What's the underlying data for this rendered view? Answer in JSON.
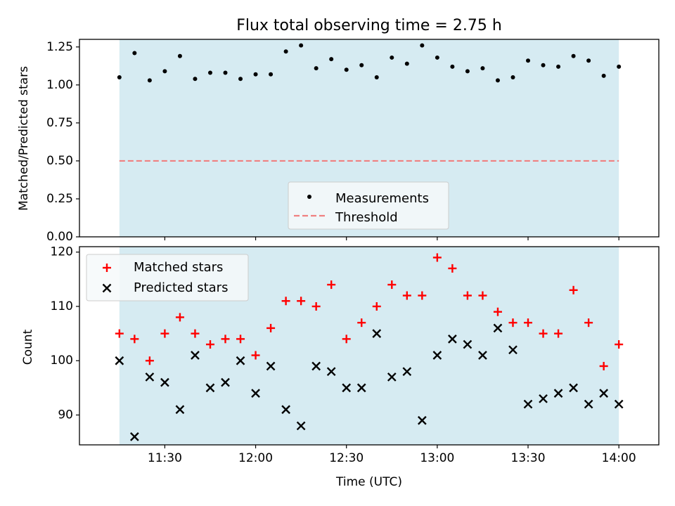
{
  "title": "Flux total observing time = 2.75 h",
  "colors": {
    "shade": "#add8e6",
    "matched": "#ff0000",
    "predicted": "#000000",
    "measurement": "#000000",
    "threshold": "#f08080"
  },
  "chart_data": [
    {
      "type": "scatter",
      "ylabel": "Matched/Predicted stars",
      "ylim": [
        0,
        1.3
      ],
      "yticks": [
        "0.00",
        "0.25",
        "0.50",
        "0.75",
        "1.00",
        "1.25"
      ],
      "observing_window": [
        "11:15",
        "14:00"
      ],
      "threshold": 0.5,
      "legend": {
        "placement": "lower-center",
        "entries": [
          "Measurements",
          "Threshold"
        ]
      },
      "series": [
        {
          "name": "Measurements",
          "x": [
            "11:15",
            "11:20",
            "11:25",
            "11:30",
            "11:35",
            "11:40",
            "11:45",
            "11:50",
            "11:55",
            "12:00",
            "12:05",
            "12:10",
            "12:15",
            "12:20",
            "12:25",
            "12:30",
            "12:35",
            "12:40",
            "12:45",
            "12:50",
            "12:55",
            "13:00",
            "13:05",
            "13:10",
            "13:15",
            "13:20",
            "13:25",
            "13:30",
            "13:35",
            "13:40",
            "13:45",
            "13:50",
            "13:55",
            "14:00"
          ],
          "values": [
            1.05,
            1.21,
            1.03,
            1.09,
            1.19,
            1.04,
            1.08,
            1.08,
            1.04,
            1.07,
            1.07,
            1.22,
            1.26,
            1.11,
            1.17,
            1.1,
            1.13,
            1.05,
            1.18,
            1.14,
            1.26,
            1.18,
            1.12,
            1.09,
            1.11,
            1.03,
            1.05,
            1.16,
            1.13,
            1.12,
            1.19,
            1.16,
            1.06,
            1.12
          ]
        }
      ]
    },
    {
      "type": "scatter",
      "xlabel": "Time (UTC)",
      "ylabel": "Count",
      "ylim": [
        84.5,
        121
      ],
      "yticks": [
        "90",
        "100",
        "110",
        "120"
      ],
      "xticks": [
        "11:30",
        "12:00",
        "12:30",
        "13:00",
        "13:30",
        "14:00"
      ],
      "legend": {
        "placement": "upper-left",
        "entries": [
          "Matched stars",
          "Predicted stars"
        ]
      },
      "series": [
        {
          "name": "Matched stars",
          "x": [
            "11:15",
            "11:20",
            "11:25",
            "11:30",
            "11:35",
            "11:40",
            "11:45",
            "11:50",
            "11:55",
            "12:00",
            "12:05",
            "12:10",
            "12:15",
            "12:20",
            "12:25",
            "12:30",
            "12:35",
            "12:40",
            "12:45",
            "12:50",
            "12:55",
            "13:00",
            "13:05",
            "13:10",
            "13:15",
            "13:20",
            "13:25",
            "13:30",
            "13:35",
            "13:40",
            "13:45",
            "13:50",
            "13:55",
            "14:00"
          ],
          "values": [
            105,
            104,
            100,
            105,
            108,
            105,
            103,
            104,
            104,
            101,
            106,
            111,
            111,
            110,
            114,
            104,
            107,
            110,
            114,
            112,
            112,
            119,
            117,
            112,
            112,
            109,
            107,
            107,
            105,
            105,
            113,
            107,
            99,
            103
          ]
        },
        {
          "name": "Predicted stars",
          "x": [
            "11:15",
            "11:20",
            "11:25",
            "11:30",
            "11:35",
            "11:40",
            "11:45",
            "11:50",
            "11:55",
            "12:00",
            "12:05",
            "12:10",
            "12:15",
            "12:20",
            "12:25",
            "12:30",
            "12:35",
            "12:40",
            "12:45",
            "12:50",
            "12:55",
            "13:00",
            "13:05",
            "13:10",
            "13:15",
            "13:20",
            "13:25",
            "13:30",
            "13:35",
            "13:40",
            "13:45",
            "13:50",
            "13:55",
            "14:00"
          ],
          "values": [
            100,
            86,
            97,
            96,
            91,
            101,
            95,
            96,
            100,
            94,
            99,
            91,
            88,
            99,
            98,
            95,
            95,
            105,
            97,
            98,
            89,
            101,
            104,
            103,
            101,
            106,
            102,
            92,
            93,
            94,
            95,
            92,
            94,
            92
          ]
        }
      ]
    }
  ]
}
